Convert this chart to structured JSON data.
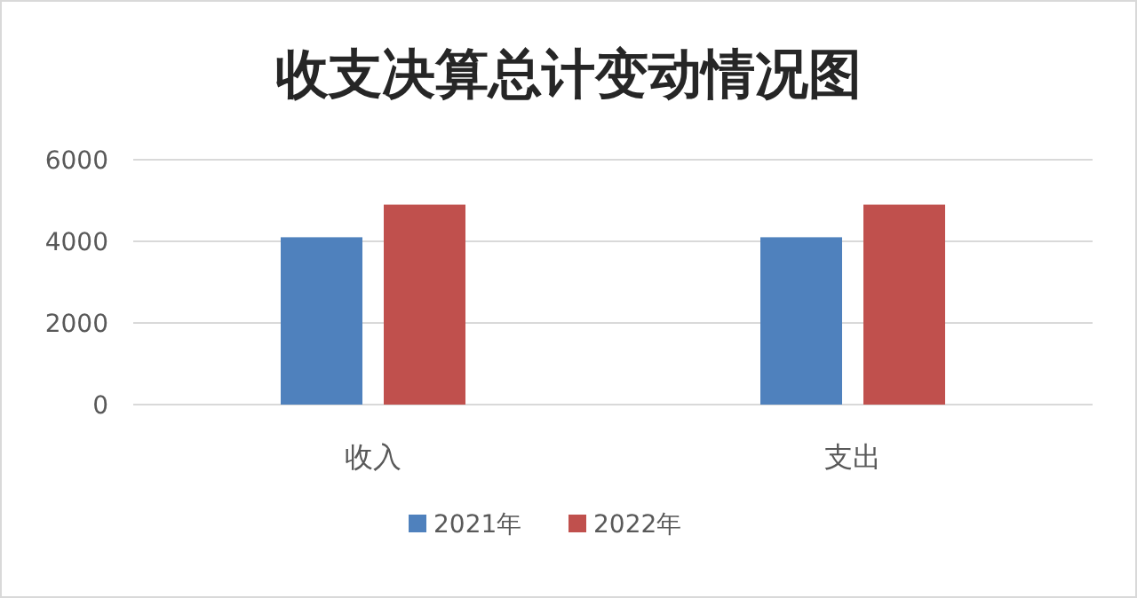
{
  "chart_data": {
    "type": "bar",
    "title": "收支决算总计变动情况图",
    "categories": [
      "收入",
      "支出"
    ],
    "series": [
      {
        "name": "2021年",
        "color": "#4f81bd",
        "values": [
          4100,
          4100
        ]
      },
      {
        "name": "2022年",
        "color": "#c0504d",
        "values": [
          4900,
          4900
        ]
      }
    ],
    "ylim": [
      0,
      6000
    ],
    "yticks": [
      0,
      2000,
      4000,
      6000
    ],
    "grid": "y",
    "legend": "bottom"
  }
}
